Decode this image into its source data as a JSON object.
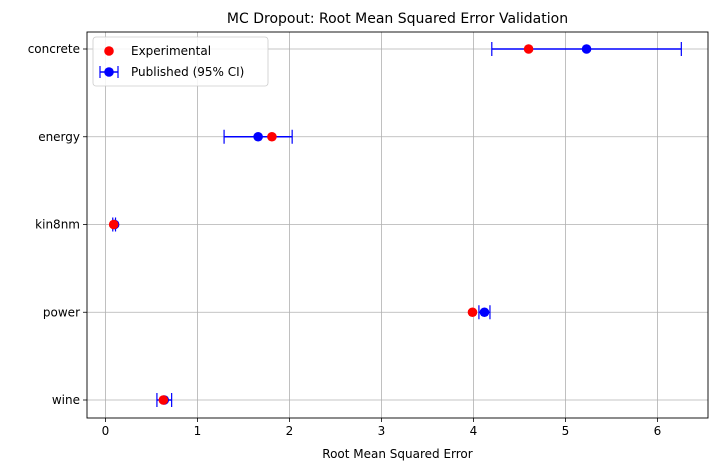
{
  "chart_data": {
    "type": "scatter",
    "title": "MC Dropout: Root Mean Squared Error Validation",
    "xlabel": "Root Mean Squared Error",
    "ylabel": "",
    "xlim": [
      -0.2,
      6.55
    ],
    "xticks": [
      0,
      1,
      2,
      3,
      4,
      5,
      6
    ],
    "categories": [
      "concrete",
      "energy",
      "kin8nm",
      "power",
      "wine"
    ],
    "grid": true,
    "legend_position": "top-left",
    "series": [
      {
        "name": "Experimental",
        "color": "#ff0000",
        "values": [
          4.6,
          1.81,
          0.09,
          3.99,
          0.63
        ]
      },
      {
        "name": "Published (95% CI)",
        "color": "#0000ff",
        "values": [
          5.23,
          1.66,
          0.1,
          4.12,
          0.64
        ],
        "ci_low": [
          4.2,
          1.29,
          0.08,
          4.06,
          0.56
        ],
        "ci_high": [
          6.26,
          2.03,
          0.11,
          4.18,
          0.72
        ]
      }
    ]
  }
}
